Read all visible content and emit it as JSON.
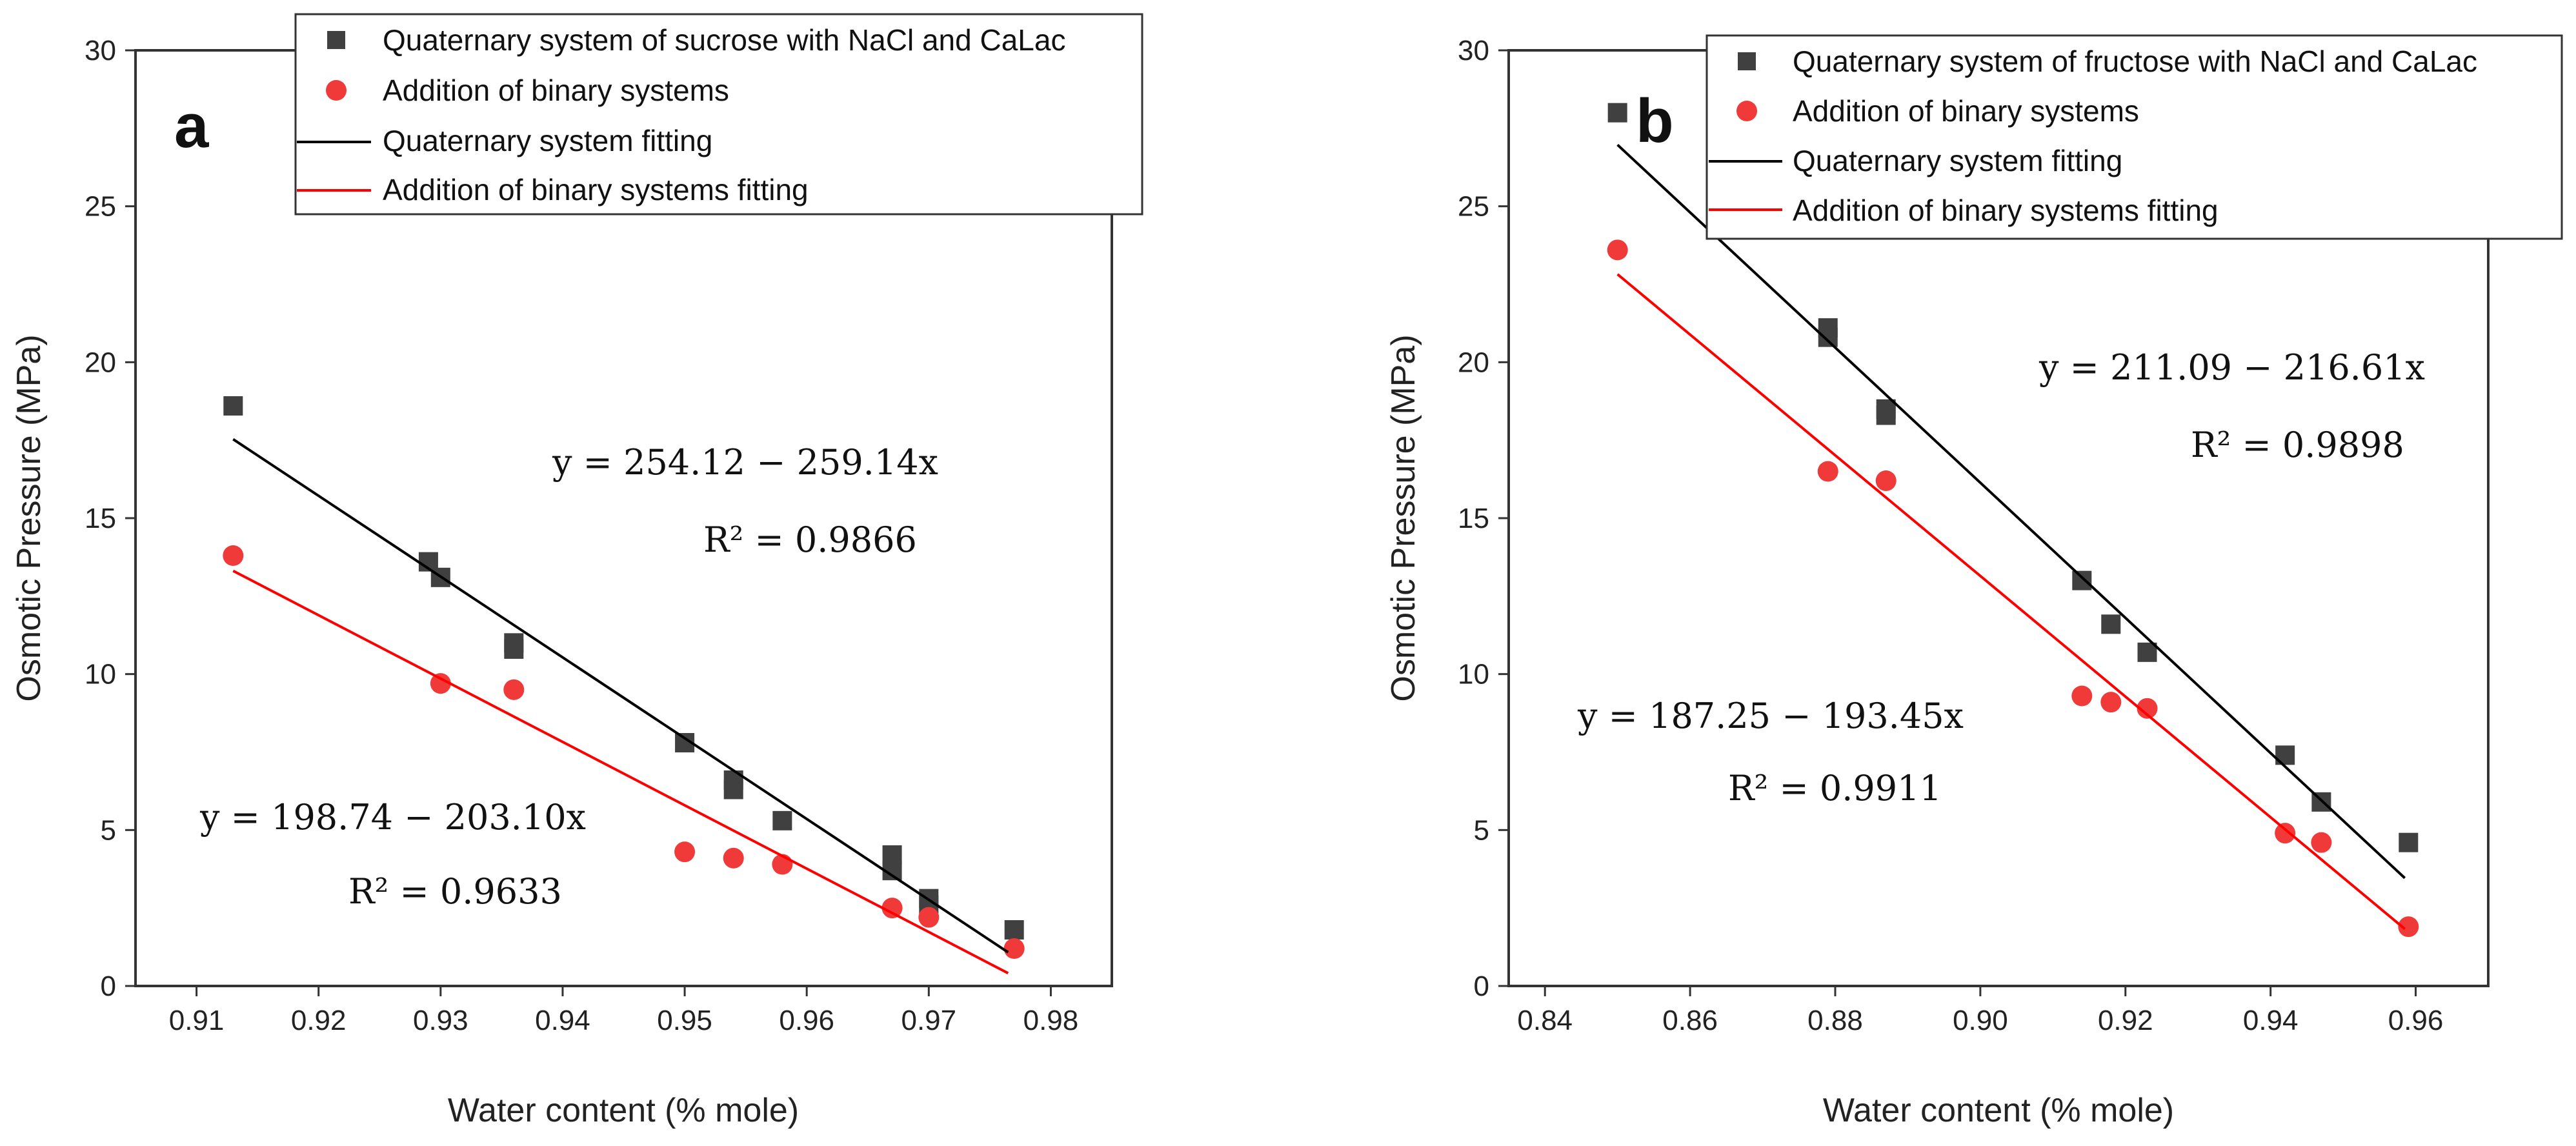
{
  "charts": [
    {
      "panel": "a",
      "chart_data": {
        "type": "scatter",
        "xlabel": "Water content (% mole)",
        "ylabel": "Osmotic Pressure (MPa)",
        "xlim": [
          0.905,
          0.985
        ],
        "ylim": [
          0,
          30
        ],
        "xticks": [
          0.91,
          0.92,
          0.93,
          0.94,
          0.95,
          0.96,
          0.97,
          0.98
        ],
        "xtick_labels": [
          "0.91",
          "0.92",
          "0.93",
          "0.94",
          "0.95",
          "0.96",
          "0.97",
          "0.98"
        ],
        "yticks": [
          0,
          5,
          10,
          15,
          20,
          25,
          30
        ],
        "ytick_labels": [
          "0",
          "5",
          "10",
          "15",
          "20",
          "25",
          "30"
        ],
        "grid": false,
        "legend_position": "top-right",
        "series": [
          {
            "name": "Quaternary system of sucrose with NaCl and CaLac",
            "kind": "scatter",
            "marker": "square",
            "color": "#404040",
            "points": [
              [
                0.913,
                18.6
              ],
              [
                0.929,
                13.6
              ],
              [
                0.93,
                13.1
              ],
              [
                0.936,
                11.0
              ],
              [
                0.936,
                10.8
              ],
              [
                0.95,
                7.8
              ],
              [
                0.954,
                6.3
              ],
              [
                0.954,
                6.6
              ],
              [
                0.958,
                5.3
              ],
              [
                0.967,
                4.2
              ],
              [
                0.967,
                3.7
              ],
              [
                0.97,
                2.8
              ],
              [
                0.97,
                2.6
              ],
              [
                0.977,
                1.8
              ]
            ]
          },
          {
            "name": "Addition of binary systems",
            "kind": "scatter",
            "marker": "circle",
            "color": "#f03a3a",
            "points": [
              [
                0.913,
                13.8
              ],
              [
                0.93,
                9.7
              ],
              [
                0.936,
                9.5
              ],
              [
                0.95,
                4.3
              ],
              [
                0.954,
                4.1
              ],
              [
                0.958,
                3.9
              ],
              [
                0.967,
                2.5
              ],
              [
                0.97,
                2.2
              ],
              [
                0.977,
                1.2
              ]
            ]
          },
          {
            "name": "Quaternary system fitting",
            "kind": "line",
            "color": "#000000",
            "points": [
              [
                0.913,
                17.53
              ],
              [
                0.9765,
                1.08
              ]
            ]
          },
          {
            "name": "Addition of binary systems fitting",
            "kind": "line",
            "color": "#ff0000",
            "points": [
              [
                0.913,
                13.31
              ],
              [
                0.9765,
                0.41
              ]
            ]
          }
        ],
        "annotations": [
          {
            "equation": "y = 254.12 − 259.14x",
            "r2": "R² = 0.9866"
          },
          {
            "equation": "y = 198.74 − 203.10x",
            "r2": "R² = 0.9633"
          }
        ]
      }
    },
    {
      "panel": "b",
      "chart_data": {
        "type": "scatter",
        "xlabel": "Water content (% mole)",
        "ylabel": "Osmotic Pressure (MPa)",
        "xlim": [
          0.835,
          0.97
        ],
        "ylim": [
          0,
          30
        ],
        "xticks": [
          0.84,
          0.86,
          0.88,
          0.9,
          0.92,
          0.94,
          0.96
        ],
        "xtick_labels": [
          "0.84",
          "0.86",
          "0.88",
          "0.90",
          "0.92",
          "0.94",
          "0.96"
        ],
        "yticks": [
          0,
          5,
          10,
          15,
          20,
          25,
          30
        ],
        "ytick_labels": [
          "0",
          "5",
          "10",
          "15",
          "20",
          "25",
          "30"
        ],
        "grid": false,
        "legend_position": "top-right",
        "series": [
          {
            "name": "Quaternary system of fructose with NaCl and CaLac",
            "kind": "scatter",
            "marker": "square",
            "color": "#404040",
            "points": [
              [
                0.85,
                28.0
              ],
              [
                0.879,
                20.8
              ],
              [
                0.879,
                21.1
              ],
              [
                0.887,
                18.5
              ],
              [
                0.887,
                18.3
              ],
              [
                0.914,
                13.0
              ],
              [
                0.918,
                11.6
              ],
              [
                0.923,
                10.7
              ],
              [
                0.942,
                7.4
              ],
              [
                0.947,
                5.9
              ],
              [
                0.959,
                4.6
              ]
            ]
          },
          {
            "name": "Addition of binary systems",
            "kind": "scatter",
            "marker": "circle",
            "color": "#f03a3a",
            "points": [
              [
                0.85,
                23.6
              ],
              [
                0.879,
                16.5
              ],
              [
                0.887,
                16.2
              ],
              [
                0.914,
                9.3
              ],
              [
                0.918,
                9.1
              ],
              [
                0.923,
                8.9
              ],
              [
                0.942,
                4.9
              ],
              [
                0.947,
                4.6
              ],
              [
                0.959,
                1.9
              ]
            ]
          },
          {
            "name": "Quaternary system fitting",
            "kind": "line",
            "color": "#000000",
            "points": [
              [
                0.85,
                26.97
              ],
              [
                0.9585,
                3.46
              ]
            ]
          },
          {
            "name": "Addition of binary systems fitting",
            "kind": "line",
            "color": "#ff0000",
            "points": [
              [
                0.85,
                22.82
              ],
              [
                0.9585,
                1.83
              ]
            ]
          }
        ],
        "annotations": [
          {
            "equation": "y = 211.09 − 216.61x",
            "r2": "R² = 0.9898"
          },
          {
            "equation": "y = 187.25 − 193.45x",
            "r2": "R² = 0.9911"
          }
        ]
      }
    }
  ]
}
